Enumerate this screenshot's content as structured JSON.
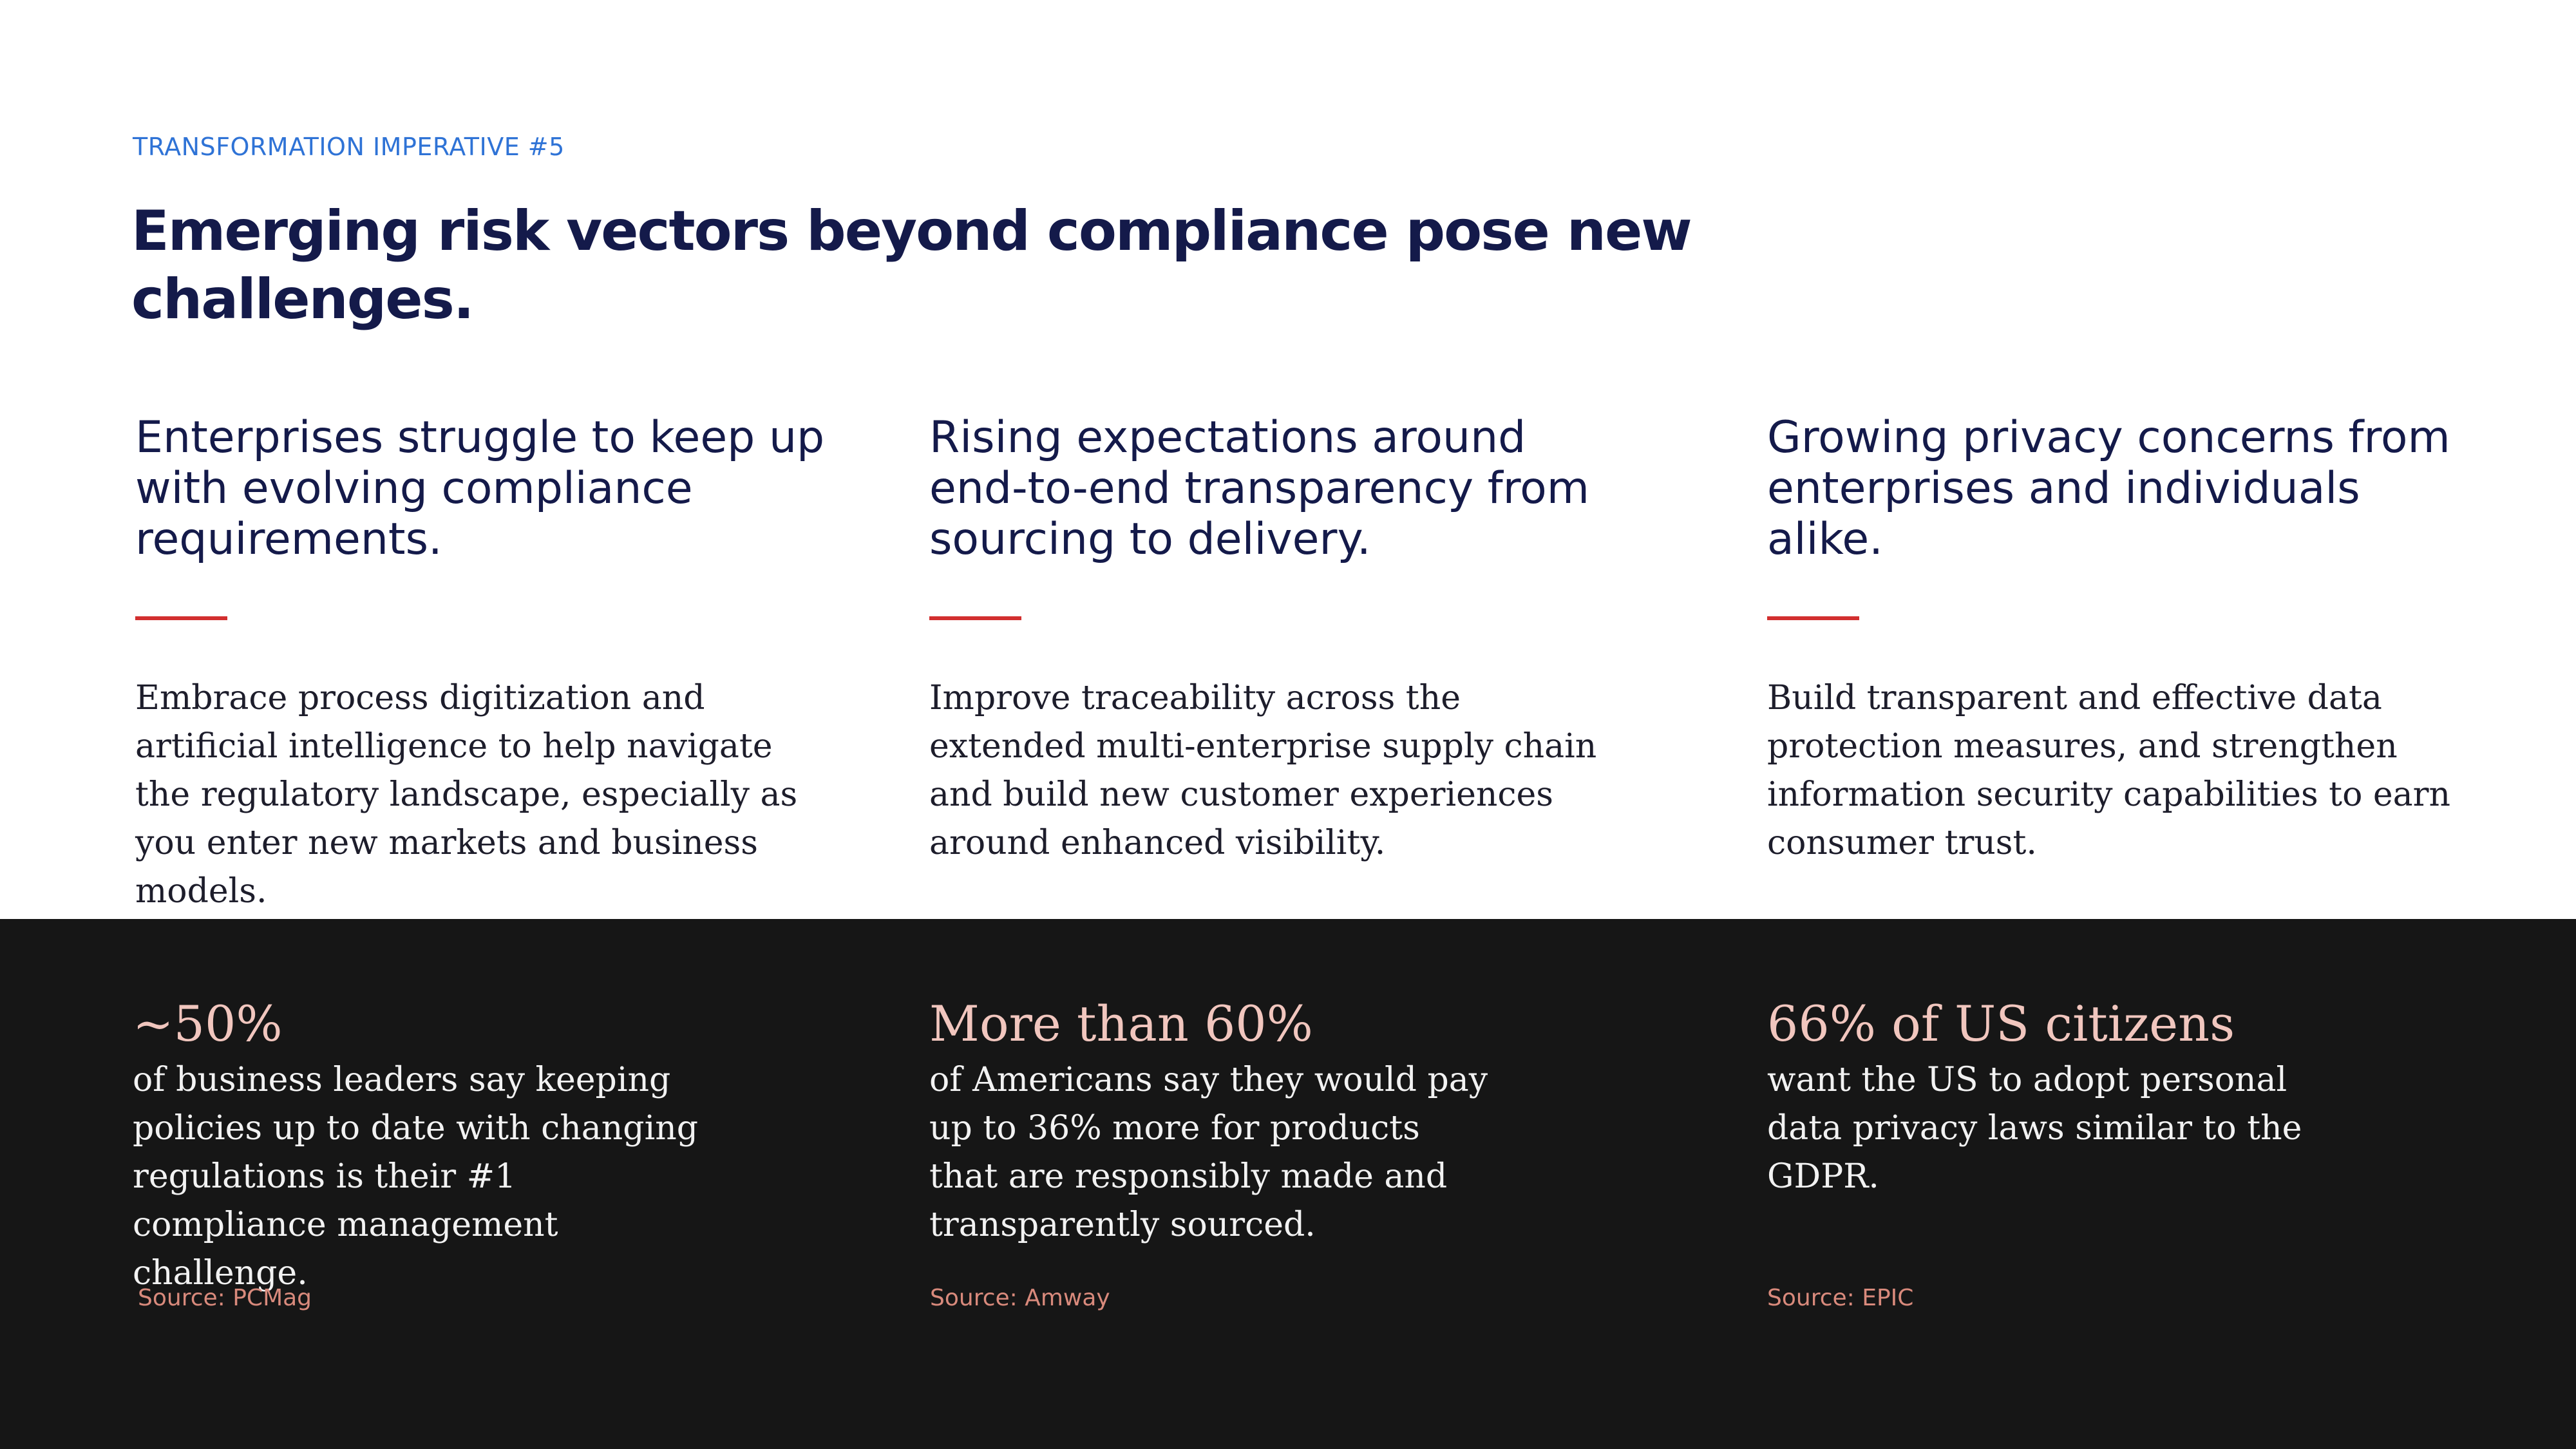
{
  "eyebrow": "TRANSFORMATION IMPERATIVE #5",
  "headline": "Emerging risk vectors beyond compliance pose new challenges.",
  "columns": [
    {
      "heading": "Enterprises struggle to keep up with evolving compliance requirements.",
      "body": "Embrace process digitization and artificial intelligence to help navigate the regulatory landscape, especially as you enter new markets and business models."
    },
    {
      "heading": "Rising expectations around end-to-end transparency from sourcing to delivery.",
      "body": "Improve traceability across the extended multi-enterprise supply chain and build new customer experiences around enhanced visibility."
    },
    {
      "heading": "Growing privacy concerns from enterprises and individuals alike.",
      "body": "Build transparent and effective data protection measures, and strengthen information security capabilities to earn consumer trust."
    }
  ],
  "stats": [
    {
      "value": "~50%",
      "text": "of business leaders say keeping policies up to date with changing regulations is their #1 compliance management challenge.",
      "source": "Source: PCMag"
    },
    {
      "value": "More than 60%",
      "text": "of Americans say they would pay up to 36% more for products that are responsibly made and transparently sourced.",
      "source": "Source: Amway"
    },
    {
      "value": "66% of US citizens",
      "text": "want the US to adopt personal data privacy laws similar to the GDPR.",
      "source": "Source: EPIC"
    }
  ],
  "colors": {
    "eyebrow": "#2f73d6",
    "headline": "#141a4a",
    "accent_rule": "#d22f2f",
    "dark_band": "#161616",
    "stat_value": "#f1c6be",
    "source": "#d98a7c"
  }
}
